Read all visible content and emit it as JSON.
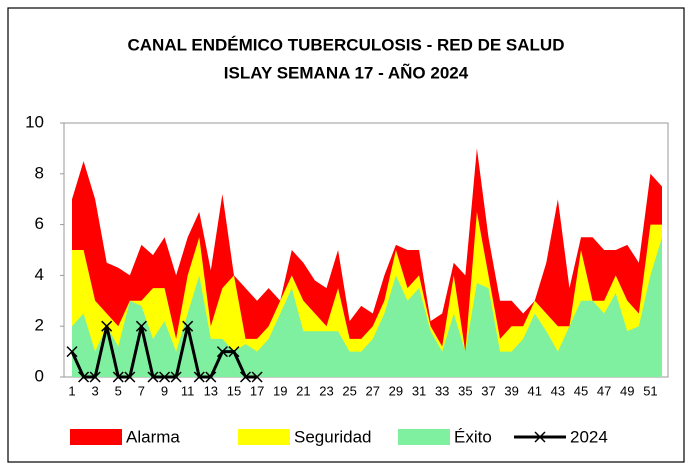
{
  "chart_data": {
    "type": "area",
    "title": "CANAL ENDÉMICO TUBERCULOSIS - RED DE SALUD",
    "subtitle": "ISLAY SEMANA 17 -  AÑO 2024",
    "categories": [
      1,
      null,
      3,
      null,
      5,
      null,
      7,
      null,
      9,
      null,
      11,
      null,
      13,
      null,
      15,
      null,
      17,
      null,
      19,
      null,
      21,
      null,
      23,
      null,
      25,
      null,
      27,
      null,
      29,
      null,
      31,
      null,
      33,
      null,
      35,
      null,
      37,
      null,
      39,
      null,
      41,
      null,
      43,
      null,
      45,
      null,
      47,
      null,
      49,
      null,
      51,
      null
    ],
    "series": [
      {
        "name": "Alarma",
        "color": "#ff0000",
        "values": [
          7,
          8.5,
          7,
          4.5,
          4.3,
          4,
          5.2,
          4.8,
          5.5,
          4,
          5.5,
          6.5,
          4.2,
          7.2,
          4,
          3.5,
          3,
          3.5,
          3,
          5,
          4.5,
          3.8,
          3.5,
          5,
          2.2,
          2.8,
          2.5,
          4,
          5.2,
          5,
          5,
          2.2,
          2.5,
          4.5,
          4,
          9,
          5.5,
          3,
          3,
          2.5,
          3,
          4.5,
          7,
          3.5,
          5.5,
          5.5,
          5,
          5,
          5.2,
          4.5,
          8,
          7.5
        ]
      },
      {
        "name": "Seguridad",
        "color": "#ffff00",
        "values": [
          5,
          5,
          3,
          2.5,
          2,
          3,
          3,
          3.5,
          3.5,
          1.5,
          4,
          5.5,
          2,
          3.5,
          4,
          1.5,
          1.5,
          2,
          3,
          4,
          3,
          2.5,
          2,
          3.5,
          1.5,
          1.5,
          2,
          3,
          5,
          3.5,
          4,
          2,
          1.2,
          4,
          1,
          6.5,
          4,
          1.5,
          2,
          2,
          3,
          2.5,
          2,
          2,
          5,
          3,
          3,
          4,
          3,
          2.5,
          6,
          6
        ]
      },
      {
        "name": "Éxito",
        "color": "#7ff0a0",
        "values": [
          2,
          2.5,
          1,
          2,
          1.2,
          3,
          2.8,
          1.5,
          2.2,
          1,
          2.5,
          4,
          1.5,
          1.5,
          1,
          1.3,
          1,
          1.5,
          2.5,
          3.5,
          1.8,
          1.8,
          1.8,
          1.8,
          1,
          1,
          1.5,
          2.5,
          4,
          3,
          3.5,
          1.8,
          1,
          2.5,
          1,
          3.7,
          3.5,
          1,
          1,
          1.5,
          2.5,
          1.8,
          1,
          2,
          3,
          3,
          2.5,
          3.3,
          1.8,
          2,
          4,
          5.5
        ]
      },
      {
        "name": "2024",
        "color": "#000000",
        "type": "line",
        "values": [
          1,
          0,
          0,
          2,
          0,
          0,
          2,
          0,
          0,
          0,
          2,
          0,
          0,
          1,
          1,
          0,
          0,
          null,
          null,
          null,
          null,
          null,
          null,
          null,
          null,
          null,
          null,
          null,
          null,
          null,
          null,
          null,
          null,
          null,
          null,
          null,
          null,
          null,
          null,
          null,
          null,
          null,
          null,
          null,
          null,
          null,
          null,
          null,
          null,
          null,
          null,
          null
        ]
      }
    ],
    "ylim": [
      0,
      10
    ],
    "yticks": [
      0,
      2,
      4,
      6,
      8,
      10
    ],
    "legend": "bottom"
  }
}
